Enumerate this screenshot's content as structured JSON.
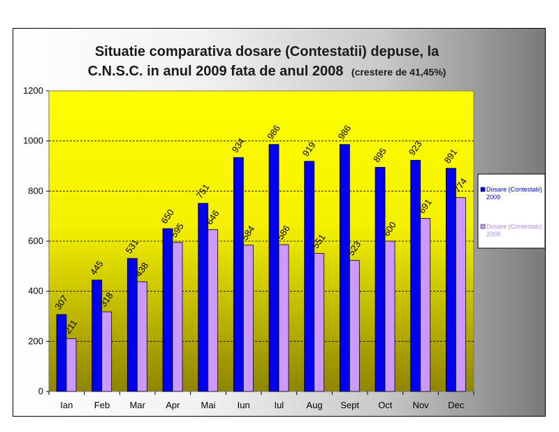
{
  "chart_data": {
    "type": "bar",
    "title_main_line1": "Situatie comparativa dosare (Contestatii) depuse, la",
    "title_main_line2": "C.N.S.C. in anul 2009 fata de anul 2008",
    "title_note": "(crestere de 41,45%)",
    "categories": [
      "Ian",
      "Feb",
      "Mar",
      "Apr",
      "Mai",
      "Iun",
      "Iul",
      "Aug",
      "Sept",
      "Oct",
      "Nov",
      "Dec"
    ],
    "series": [
      {
        "name": "Dosare (Contestatii) 2009",
        "legend_line1": "Dosare (Contestatii)",
        "legend_line2": "2009",
        "color": "#0000ee",
        "values": [
          307,
          445,
          531,
          650,
          751,
          934,
          986,
          919,
          986,
          895,
          923,
          891
        ]
      },
      {
        "name": "Dosare (Contestatii) 2008",
        "legend_line1": "Dosare (Contestatii)",
        "legend_line2": "2008",
        "color": "#cc99ff",
        "values": [
          211,
          318,
          438,
          595,
          646,
          584,
          586,
          551,
          523,
          600,
          691,
          774
        ]
      }
    ],
    "ylim": [
      0,
      1200
    ],
    "yticks": [
      0,
      200,
      400,
      600,
      800,
      1000,
      1200
    ],
    "grid": true,
    "legend_position": "right",
    "plot_background": "#ffff00"
  }
}
